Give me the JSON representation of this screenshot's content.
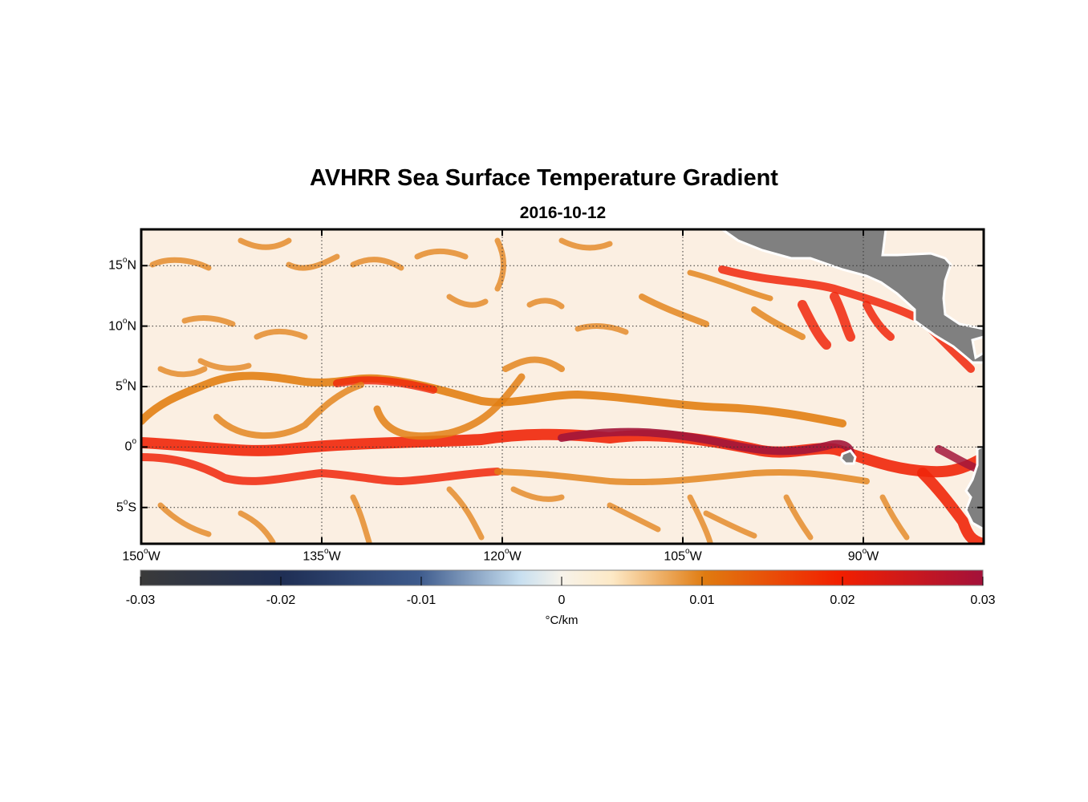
{
  "title": "AVHRR Sea Surface Temperature Gradient",
  "subtitle": "2016-10-12",
  "map": {
    "lon_range": [
      -150,
      -80
    ],
    "lat_range": [
      -8,
      18
    ],
    "lat_ticks": [
      {
        "value": 15,
        "label": "15",
        "hemi": "N"
      },
      {
        "value": 10,
        "label": "10",
        "hemi": "N"
      },
      {
        "value": 5,
        "label": "5",
        "hemi": "N"
      },
      {
        "value": 0,
        "label": "0",
        "hemi": ""
      },
      {
        "value": -5,
        "label": "5",
        "hemi": "S"
      }
    ],
    "lon_ticks": [
      {
        "value": -150,
        "label": "150",
        "hemi": "W"
      },
      {
        "value": -135,
        "label": "135",
        "hemi": "W"
      },
      {
        "value": -120,
        "label": "120",
        "hemi": "W"
      },
      {
        "value": -105,
        "label": "105",
        "hemi": "W"
      },
      {
        "value": -90,
        "label": "90",
        "hemi": "W"
      }
    ],
    "land_color": "#808080",
    "grid": "dotted"
  },
  "colorbar": {
    "ticks": [
      "-0.03",
      "-0.02",
      "-0.01",
      "0",
      "0.01",
      "0.02",
      "0.03"
    ],
    "range": [
      -0.03,
      0.03
    ],
    "unit": "°C/km",
    "colors": [
      "#3a3a3a",
      "#1f2f55",
      "#3d5a8c",
      "#c7dff0",
      "#fdf3dc",
      "#e07b10",
      "#f21f00",
      "#a3113a"
    ]
  }
}
